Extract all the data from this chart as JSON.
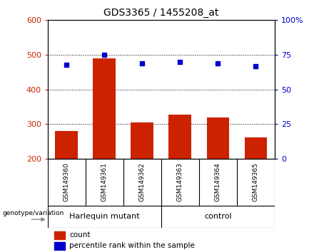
{
  "title": "GDS3365 / 1455208_at",
  "categories": [
    "GSM149360",
    "GSM149361",
    "GSM149362",
    "GSM149363",
    "GSM149364",
    "GSM149365"
  ],
  "bar_values": [
    280,
    490,
    305,
    328,
    320,
    262
  ],
  "scatter_values": [
    68,
    75,
    69,
    70,
    69,
    67
  ],
  "bar_color": "#cc2200",
  "scatter_color": "#0000cc",
  "ylim_left": [
    200,
    600
  ],
  "ylim_right": [
    0,
    100
  ],
  "yticks_left": [
    200,
    300,
    400,
    500,
    600
  ],
  "yticks_right": [
    0,
    25,
    50,
    75,
    100
  ],
  "group1_label": "Harlequin mutant",
  "group2_label": "control",
  "group1_indices": [
    0,
    1,
    2
  ],
  "group2_indices": [
    3,
    4,
    5
  ],
  "group_color": "#90ee90",
  "group_label_text": "genotype/variation",
  "legend_count": "count",
  "legend_percentile": "percentile rank within the sample",
  "bar_width": 0.6,
  "background_color": "#ffffff",
  "plot_bg_color": "#ffffff",
  "tick_area_bg": "#c8c8c8",
  "title_fontsize": 10,
  "axis_fontsize": 8,
  "label_fontsize": 7,
  "legend_fontsize": 7.5
}
